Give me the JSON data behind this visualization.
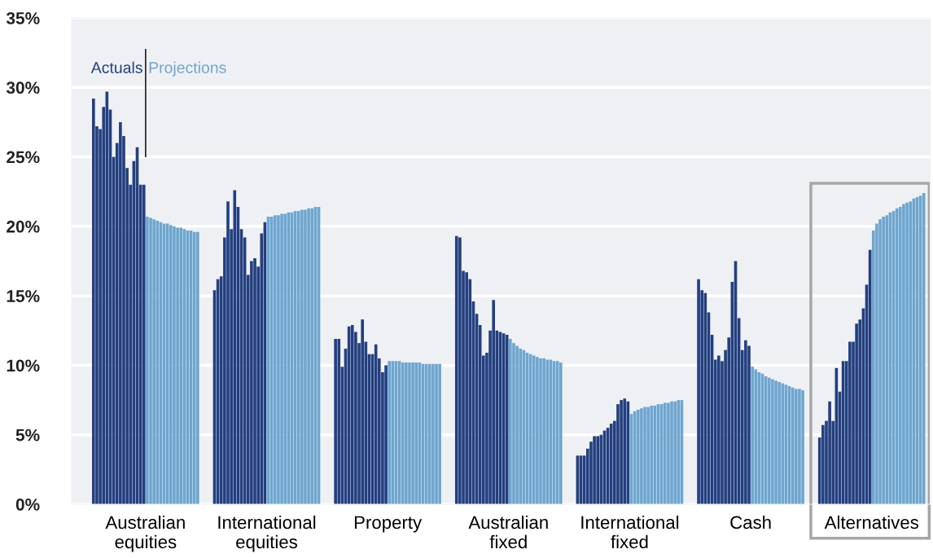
{
  "chart_data": {
    "type": "bar",
    "categories": [
      null,
      null,
      null,
      null,
      null,
      null,
      null,
      null,
      null,
      null,
      null,
      null,
      null,
      null,
      null,
      null,
      "Australian\nequities",
      null,
      null,
      null,
      null,
      null,
      null,
      null,
      null,
      null,
      null,
      null,
      null,
      null,
      null,
      null,
      null,
      null,
      null,
      null,
      null,
      null,
      null,
      null,
      null,
      null,
      null,
      null,
      null,
      null,
      null,
      null,
      null,
      null,
      null,
      null,
      "International\nequities",
      null,
      null,
      null,
      null,
      null,
      null,
      null,
      null,
      null,
      null,
      null,
      null,
      null,
      null,
      null,
      null,
      null,
      null,
      null,
      null,
      null,
      null,
      null,
      null,
      null,
      null,
      null,
      null,
      null,
      null,
      null,
      null,
      null,
      null,
      null,
      "Property",
      null,
      null,
      null,
      null,
      null,
      null,
      null,
      null,
      null,
      null,
      null,
      null,
      null,
      null,
      null,
      null,
      null,
      null,
      null,
      null,
      null,
      null,
      null,
      null,
      null,
      null,
      null,
      null,
      null,
      null,
      null,
      null,
      null,
      null,
      null,
      "Australian\nfixed",
      null,
      null,
      null,
      null,
      null,
      null,
      null,
      null,
      null,
      null,
      null,
      null,
      null,
      null,
      null,
      null,
      null,
      null,
      null,
      null,
      null,
      null,
      null,
      null,
      null,
      null,
      null,
      null,
      null,
      null,
      null,
      null,
      null,
      null,
      null,
      "International\nfixed",
      null,
      null,
      null,
      null,
      null,
      null,
      null,
      null,
      null,
      null,
      null,
      null,
      null,
      null,
      null,
      null,
      null,
      null,
      null,
      null,
      null,
      null,
      null,
      null,
      null,
      null,
      null,
      null,
      null,
      null,
      null,
      null,
      null,
      null,
      null,
      "Cash",
      null,
      null,
      null,
      null,
      null,
      null,
      null,
      null,
      null,
      null,
      null,
      null,
      null,
      null,
      null,
      null,
      null,
      null,
      null,
      null,
      null,
      null,
      null,
      null,
      null,
      null,
      null,
      null,
      null,
      null,
      null,
      null,
      null,
      null,
      null,
      "Alternatives",
      null,
      null,
      null,
      null,
      null,
      null,
      null,
      null,
      null,
      null,
      null,
      null,
      null,
      null,
      null
    ],
    "series": [
      {
        "name": "Actuals",
        "color": "#233f80",
        "values": [
          29.2,
          27.2,
          27.0,
          28.6,
          29.7,
          28.4,
          25.0,
          26.0,
          27.5,
          26.5,
          24.2,
          23.0,
          24.7,
          25.7,
          23.0,
          23.0,
          null,
          null,
          null,
          null,
          null,
          null,
          null,
          null,
          null,
          null,
          null,
          null,
          null,
          null,
          null,
          null,
          null,
          null,
          null,
          null,
          15.4,
          16.2,
          16.4,
          19.2,
          21.8,
          19.8,
          22.6,
          21.4,
          19.8,
          19.2,
          16.5,
          17.5,
          17.7,
          17.1,
          19.5,
          20.3,
          null,
          null,
          null,
          null,
          null,
          null,
          null,
          null,
          null,
          null,
          null,
          null,
          null,
          null,
          null,
          null,
          null,
          null,
          null,
          null,
          11.9,
          11.9,
          9.9,
          11.2,
          12.8,
          12.9,
          12.4,
          11.6,
          13.3,
          11.7,
          10.8,
          10.8,
          11.5,
          10.5,
          9.5,
          10.0,
          null,
          null,
          null,
          null,
          null,
          null,
          null,
          null,
          null,
          null,
          null,
          null,
          null,
          null,
          null,
          null,
          null,
          null,
          null,
          null,
          19.3,
          19.2,
          16.8,
          16.7,
          16.2,
          14.6,
          13.7,
          12.9,
          10.7,
          10.9,
          12.5,
          14.7,
          12.5,
          12.4,
          12.3,
          12.2,
          null,
          null,
          null,
          null,
          null,
          null,
          null,
          null,
          null,
          null,
          null,
          null,
          null,
          null,
          null,
          null,
          null,
          null,
          null,
          null,
          3.5,
          3.5,
          3.5,
          4.0,
          4.5,
          4.9,
          4.9,
          5.0,
          5.3,
          5.5,
          5.8,
          6.0,
          7.2,
          7.5,
          7.6,
          7.4,
          null,
          null,
          null,
          null,
          null,
          null,
          null,
          null,
          null,
          null,
          null,
          null,
          null,
          null,
          null,
          null,
          null,
          null,
          null,
          null,
          16.2,
          15.4,
          15.2,
          13.8,
          12.2,
          10.4,
          10.7,
          10.3,
          11.1,
          12.0,
          16.0,
          17.5,
          13.4,
          11.1,
          11.8,
          11.4,
          null,
          null,
          null,
          null,
          null,
          null,
          null,
          null,
          null,
          null,
          null,
          null,
          null,
          null,
          null,
          null,
          null,
          null,
          null,
          null,
          4.8,
          5.7,
          6.0,
          7.4,
          6.0,
          9.8,
          8.1,
          10.3,
          10.3,
          11.7,
          11.7,
          13.0,
          13.3,
          14.1,
          15.8,
          18.3,
          null,
          null,
          null,
          null,
          null,
          null,
          null,
          null,
          null,
          null,
          null,
          null,
          null,
          null,
          null,
          null
        ]
      },
      {
        "name": "Projections",
        "color": "#6ea6d0",
        "values": [
          null,
          null,
          null,
          null,
          null,
          null,
          null,
          null,
          null,
          null,
          null,
          null,
          null,
          null,
          null,
          null,
          20.7,
          20.6,
          20.5,
          20.4,
          20.3,
          20.2,
          20.2,
          20.1,
          20.0,
          19.9,
          19.9,
          19.8,
          19.7,
          19.7,
          19.6,
          19.6,
          null,
          null,
          null,
          null,
          null,
          null,
          null,
          null,
          null,
          null,
          null,
          null,
          null,
          null,
          null,
          null,
          null,
          null,
          null,
          null,
          20.7,
          20.7,
          20.8,
          20.8,
          20.9,
          20.9,
          21.0,
          21.0,
          21.1,
          21.1,
          21.2,
          21.2,
          21.3,
          21.3,
          21.4,
          21.4,
          null,
          null,
          null,
          null,
          null,
          null,
          null,
          null,
          null,
          null,
          null,
          null,
          null,
          null,
          null,
          null,
          null,
          null,
          null,
          null,
          10.3,
          10.3,
          10.3,
          10.3,
          10.2,
          10.2,
          10.2,
          10.2,
          10.2,
          10.2,
          10.1,
          10.1,
          10.1,
          10.1,
          10.1,
          10.1,
          null,
          null,
          null,
          null,
          null,
          null,
          null,
          null,
          null,
          null,
          null,
          null,
          null,
          null,
          null,
          null,
          null,
          null,
          null,
          null,
          11.9,
          11.6,
          11.4,
          11.2,
          11.1,
          10.9,
          10.8,
          10.7,
          10.6,
          10.5,
          10.5,
          10.4,
          10.4,
          10.3,
          10.3,
          10.2,
          null,
          null,
          null,
          null,
          null,
          null,
          null,
          null,
          null,
          null,
          null,
          null,
          null,
          null,
          null,
          null,
          null,
          null,
          null,
          null,
          6.5,
          6.7,
          6.8,
          6.9,
          7.0,
          7.0,
          7.1,
          7.1,
          7.2,
          7.2,
          7.3,
          7.3,
          7.4,
          7.4,
          7.5,
          7.5,
          null,
          null,
          null,
          null,
          null,
          null,
          null,
          null,
          null,
          null,
          null,
          null,
          null,
          null,
          null,
          null,
          null,
          null,
          null,
          null,
          9.9,
          9.7,
          9.5,
          9.4,
          9.2,
          9.1,
          9.0,
          8.9,
          8.8,
          8.7,
          8.6,
          8.5,
          8.4,
          8.3,
          8.3,
          8.2,
          null,
          null,
          null,
          null,
          null,
          null,
          null,
          null,
          null,
          null,
          null,
          null,
          null,
          null,
          null,
          null,
          null,
          null,
          null,
          null,
          19.7,
          20.2,
          20.5,
          20.7,
          20.8,
          21.0,
          21.1,
          21.3,
          21.4,
          21.6,
          21.7,
          21.8,
          22.0,
          22.1,
          22.2,
          22.4
        ]
      }
    ],
    "ylim": [
      0,
      35
    ],
    "yticks": [
      {
        "value": 0,
        "label": "0%"
      },
      {
        "value": 5,
        "label": "5%"
      },
      {
        "value": 10,
        "label": "10%"
      },
      {
        "value": 15,
        "label": "15%"
      },
      {
        "value": 20,
        "label": "20%"
      },
      {
        "value": 25,
        "label": "25%"
      },
      {
        "value": 30,
        "label": "30%"
      },
      {
        "value": 35,
        "label": "35%"
      }
    ],
    "grid": "y",
    "legend": false
  }
}
